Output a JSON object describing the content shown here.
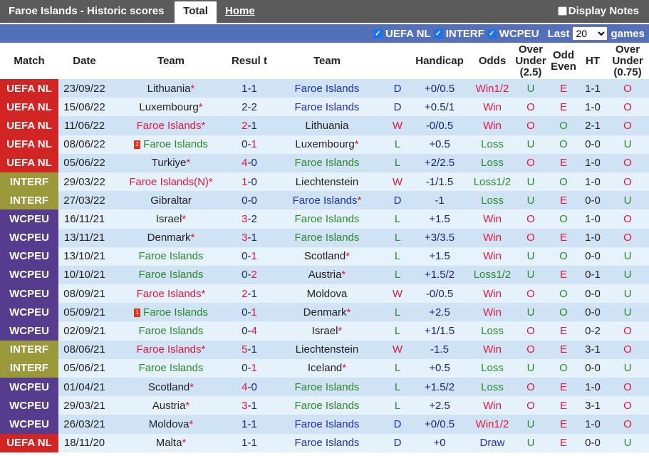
{
  "header": {
    "title": "Faroe Islands - Historic scores",
    "tabs": [
      "Total",
      "Home"
    ],
    "display_notes": "Display Notes"
  },
  "filter": {
    "options": [
      {
        "label": "UEFA NL",
        "checked": true
      },
      {
        "label": "INTERF",
        "checked": true
      },
      {
        "label": "WCPEU",
        "checked": true
      }
    ],
    "last_label": "Last",
    "last_value": "20",
    "games_label": "games"
  },
  "columns": [
    "Match",
    "Date",
    "Team",
    "Resul t",
    "Team",
    "",
    "Handicap",
    "Odds",
    "Over Under (2.5)",
    "Odd Even",
    "HT",
    "Over Under (0.75)"
  ],
  "league_colors": {
    "UEFA NL": "#d32424",
    "INTERF": "#9a9a3a",
    "WCPEU": "#553c8e"
  },
  "rows": [
    [
      "UEFA NL",
      "23/09/22",
      "Lithuania",
      1,
      "",
      "1-1",
      "Faroe Islands",
      0,
      "",
      "D",
      "+0/0.5",
      "Win1/2",
      "U",
      "E",
      "1-1",
      "O"
    ],
    [
      "UEFA NL",
      "15/06/22",
      "Luxembourg",
      1,
      "",
      "2-2",
      "Faroe Islands",
      0,
      "",
      "D",
      "+0.5/1",
      "Win",
      "O",
      "E",
      "1-0",
      "O"
    ],
    [
      "UEFA NL",
      "11/06/22",
      "Faroe Islands",
      1,
      "",
      "2-1",
      "Lithuania",
      0,
      "",
      "W",
      "-0/0.5",
      "Win",
      "O",
      "O",
      "2-1",
      "O"
    ],
    [
      "UEFA NL",
      "08/06/22",
      "Faroe Islands",
      0,
      "2",
      "0-1",
      "Luxembourg",
      1,
      "",
      "L",
      "+0.5",
      "Loss",
      "U",
      "O",
      "0-0",
      "U"
    ],
    [
      "UEFA NL",
      "05/06/22",
      "Turkiye",
      1,
      "",
      "4-0",
      "Faroe Islands",
      0,
      "",
      "L",
      "+2/2.5",
      "Loss",
      "O",
      "E",
      "1-0",
      "O"
    ],
    [
      "INTERF",
      "29/03/22",
      "Faroe Islands(N)",
      1,
      "",
      "1-0",
      "Liechtenstein",
      0,
      "",
      "W",
      "-1/1.5",
      "Loss1/2",
      "U",
      "O",
      "1-0",
      "O"
    ],
    [
      "INTERF",
      "27/03/22",
      "Gibraltar",
      0,
      "",
      "0-0",
      "Faroe Islands",
      1,
      "",
      "D",
      "-1",
      "Loss",
      "U",
      "E",
      "0-0",
      "U"
    ],
    [
      "WCPEU",
      "16/11/21",
      "Israel",
      1,
      "",
      "3-2",
      "Faroe Islands",
      0,
      "",
      "L",
      "+1.5",
      "Win",
      "O",
      "O",
      "1-0",
      "O"
    ],
    [
      "WCPEU",
      "13/11/21",
      "Denmark",
      1,
      "",
      "3-1",
      "Faroe Islands",
      0,
      "",
      "L",
      "+3/3.5",
      "Win",
      "O",
      "E",
      "1-0",
      "O"
    ],
    [
      "WCPEU",
      "13/10/21",
      "Faroe Islands",
      0,
      "",
      "0-1",
      "Scotland",
      1,
      "",
      "L",
      "+1.5",
      "Win",
      "U",
      "O",
      "0-0",
      "U"
    ],
    [
      "WCPEU",
      "10/10/21",
      "Faroe Islands",
      0,
      "",
      "0-2",
      "Austria",
      1,
      "",
      "L",
      "+1.5/2",
      "Loss1/2",
      "U",
      "E",
      "0-1",
      "U"
    ],
    [
      "WCPEU",
      "08/09/21",
      "Faroe Islands",
      1,
      "",
      "2-1",
      "Moldova",
      0,
      "",
      "W",
      "-0/0.5",
      "Win",
      "O",
      "O",
      "0-0",
      "U"
    ],
    [
      "WCPEU",
      "05/09/21",
      "Faroe Islands",
      0,
      "1",
      "0-1",
      "Denmark",
      1,
      "",
      "L",
      "+2.5",
      "Win",
      "U",
      "O",
      "0-0",
      "U"
    ],
    [
      "WCPEU",
      "02/09/21",
      "Faroe Islands",
      0,
      "",
      "0-4",
      "Israel",
      1,
      "",
      "L",
      "+1/1.5",
      "Loss",
      "O",
      "E",
      "0-2",
      "O"
    ],
    [
      "INTERF",
      "08/06/21",
      "Faroe Islands",
      1,
      "",
      "5-1",
      "Liechtenstein",
      0,
      "",
      "W",
      "-1.5",
      "Win",
      "O",
      "E",
      "3-1",
      "O"
    ],
    [
      "INTERF",
      "05/06/21",
      "Faroe Islands",
      0,
      "",
      "0-1",
      "Iceland",
      1,
      "",
      "L",
      "+0.5",
      "Loss",
      "U",
      "O",
      "0-0",
      "U"
    ],
    [
      "WCPEU",
      "01/04/21",
      "Scotland",
      1,
      "",
      "4-0",
      "Faroe Islands",
      0,
      "",
      "L",
      "+1.5/2",
      "Loss",
      "O",
      "E",
      "1-0",
      "O"
    ],
    [
      "WCPEU",
      "29/03/21",
      "Austria",
      1,
      "",
      "3-1",
      "Faroe Islands",
      0,
      "",
      "L",
      "+2.5",
      "Win",
      "O",
      "E",
      "3-1",
      "O"
    ],
    [
      "WCPEU",
      "26/03/21",
      "Moldova",
      1,
      "",
      "1-1",
      "Faroe Islands",
      0,
      "",
      "D",
      "+0/0.5",
      "Win1/2",
      "U",
      "E",
      "1-0",
      "O"
    ],
    [
      "UEFA NL",
      "18/11/20",
      "Malta",
      1,
      "",
      "1-1",
      "Faroe Islands",
      0,
      "",
      "D",
      "+0",
      "Draw",
      "U",
      "E",
      "0-0",
      "U"
    ]
  ]
}
